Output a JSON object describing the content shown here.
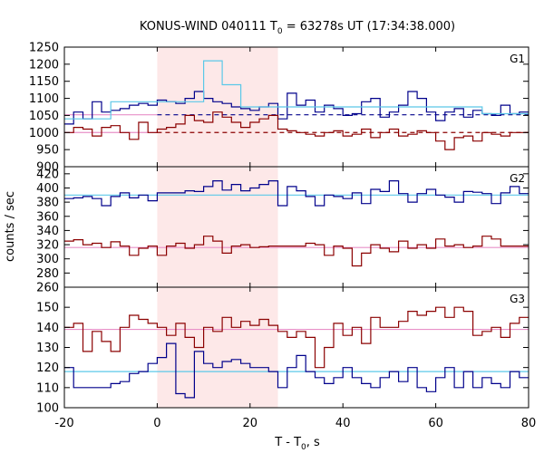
{
  "chart_data": {
    "type": "line",
    "title_main": "KONUS-WIND 040111 T",
    "title_sub": "0",
    "title_rest": " = 63278s UT (17:34:38.000)",
    "xlabel_main": "T - T",
    "xlabel_sub": "0",
    "xlabel_rest": ", s",
    "ylabel": "counts / sec",
    "xlim": [
      -20,
      80
    ],
    "xticks": [
      -20,
      0,
      20,
      40,
      60,
      80
    ],
    "highlight_x": [
      0,
      26
    ],
    "colors": {
      "blue": "#00008b",
      "red": "#8b0000",
      "cyan": "#5bc8e8",
      "pink": "#e890c8",
      "highlight": "#fde8e8"
    },
    "bin_edges": [
      -20,
      -18,
      -16,
      -14,
      -12,
      -10,
      -8,
      -6,
      -4,
      -2,
      0,
      2,
      4,
      6,
      8,
      10,
      12,
      14,
      16,
      18,
      20,
      22,
      24,
      26,
      28,
      30,
      32,
      34,
      36,
      38,
      40,
      42,
      44,
      46,
      48,
      50,
      52,
      54,
      56,
      58,
      60,
      62,
      64,
      66,
      68,
      70,
      72,
      74,
      76,
      78,
      80
    ],
    "panels": [
      {
        "label": "G1",
        "ylim": [
          900,
          1250
        ],
        "yticks": [
          900,
          950,
          1000,
          1050,
          1100,
          1150,
          1200,
          1250
        ],
        "series": [
          {
            "color": "blue",
            "values": [
              1025,
              1060,
              1040,
              1090,
              1060,
              1065,
              1070,
              1080,
              1085,
              1080,
              1095,
              1090,
              1085,
              1100,
              1120,
              1100,
              1090,
              1085,
              1075,
              1070,
              1065,
              1075,
              1085,
              1040,
              1115,
              1080,
              1095,
              1060,
              1080,
              1070,
              1050,
              1055,
              1090,
              1100,
              1045,
              1060,
              1080,
              1120,
              1100,
              1060,
              1035,
              1060,
              1070,
              1045,
              1065,
              1055,
              1050,
              1080,
              1055,
              1060
            ]
          },
          {
            "color": "red",
            "values": [
              1000,
              1015,
              1010,
              990,
              1015,
              1020,
              1000,
              980,
              1030,
              1000,
              1010,
              1015,
              1025,
              1050,
              1035,
              1030,
              1060,
              1045,
              1030,
              1015,
              1030,
              1040,
              1050,
              1010,
              1005,
              1000,
              995,
              990,
              1000,
              1005,
              990,
              995,
              1010,
              985,
              1000,
              1010,
              990,
              995,
              1005,
              1000,
              975,
              950,
              985,
              990,
              975,
              1000,
              995,
              990,
              1000,
              1000
            ]
          },
          {
            "color": "cyan",
            "values": [
              1040,
              1040,
              1040,
              1040,
              1040,
              1090,
              1090,
              1090,
              1090,
              1090,
              1090,
              1090,
              1090,
              1090,
              1090,
              1210,
              1210,
              1140,
              1140,
              1075,
              1075,
              1075,
              1075,
              1075,
              1075,
              1075,
              1075,
              1075,
              1075,
              1075,
              1075,
              1075,
              1075,
              1075,
              1075,
              1075,
              1075,
              1075,
              1075,
              1075,
              1075,
              1075,
              1075,
              1075,
              1075,
              1055,
              1055,
              1055,
              1055,
              1055
            ]
          }
        ],
        "bg_lines": [
          {
            "color": "blue",
            "dash": true,
            "y": 1052,
            "x": [
              0,
              80
            ]
          },
          {
            "color": "pink",
            "dash": false,
            "y": 1052,
            "x": [
              -20,
              0
            ]
          },
          {
            "color": "red",
            "dash": true,
            "y": 1000,
            "x": [
              0,
              80
            ]
          },
          {
            "color": "pink",
            "dash": false,
            "y": 1000,
            "x": [
              -20,
              0
            ]
          }
        ]
      },
      {
        "label": "G2",
        "ylim": [
          260,
          430
        ],
        "yticks": [
          260,
          280,
          300,
          320,
          340,
          360,
          380,
          400,
          420
        ],
        "series": [
          {
            "color": "blue",
            "values": [
              385,
              386,
              388,
              385,
              375,
              388,
              393,
              386,
              390,
              382,
              393,
              393,
              393,
              396,
              395,
              402,
              410,
              397,
              405,
              396,
              400,
              405,
              410,
              375,
              402,
              396,
              388,
              375,
              390,
              388,
              385,
              393,
              378,
              398,
              395,
              410,
              392,
              380,
              392,
              398,
              390,
              387,
              380,
              395,
              394,
              392,
              378,
              393,
              402,
              392
            ]
          },
          {
            "color": "red",
            "values": [
              325,
              327,
              320,
              322,
              316,
              324,
              318,
              305,
              315,
              318,
              305,
              318,
              322,
              315,
              320,
              332,
              325,
              308,
              318,
              320,
              316,
              317,
              318,
              318,
              318,
              318,
              322,
              320,
              305,
              318,
              315,
              290,
              308,
              320,
              315,
              310,
              325,
              315,
              320,
              315,
              328,
              318,
              320,
              316,
              318,
              332,
              328,
              318,
              318,
              318
            ]
          }
        ],
        "bg_lines": [
          {
            "color": "cyan",
            "dash": false,
            "y": 390,
            "x": [
              -20,
              80
            ]
          },
          {
            "color": "pink",
            "dash": false,
            "y": 316,
            "x": [
              -20,
              80
            ]
          }
        ]
      },
      {
        "label": "G3",
        "ylim": [
          100,
          160
        ],
        "yticks": [
          100,
          110,
          120,
          130,
          140,
          150
        ],
        "series": [
          {
            "color": "blue",
            "values": [
              120,
              110,
              110,
              110,
              110,
              112,
              113,
              117,
              118,
              122,
              125,
              132,
              107,
              105,
              128,
              122,
              120,
              123,
              124,
              122,
              120,
              120,
              118,
              110,
              120,
              126,
              118,
              115,
              112,
              115,
              120,
              115,
              112,
              110,
              115,
              118,
              113,
              120,
              110,
              108,
              115,
              120,
              110,
              118,
              110,
              115,
              112,
              110,
              118,
              115
            ]
          },
          {
            "color": "red",
            "values": [
              140,
              142,
              128,
              138,
              133,
              128,
              140,
              146,
              144,
              142,
              140,
              136,
              142,
              135,
              130,
              140,
              138,
              145,
              140,
              143,
              141,
              144,
              141,
              138,
              135,
              138,
              135,
              120,
              130,
              142,
              136,
              140,
              132,
              145,
              140,
              140,
              143,
              148,
              146,
              148,
              150,
              145,
              150,
              148,
              136,
              138,
              140,
              135,
              142,
              145
            ]
          }
        ],
        "bg_lines": [
          {
            "color": "cyan",
            "dash": false,
            "y": 118,
            "x": [
              -20,
              80
            ]
          },
          {
            "color": "pink",
            "dash": false,
            "y": 139,
            "x": [
              -20,
              80
            ]
          }
        ]
      }
    ]
  }
}
